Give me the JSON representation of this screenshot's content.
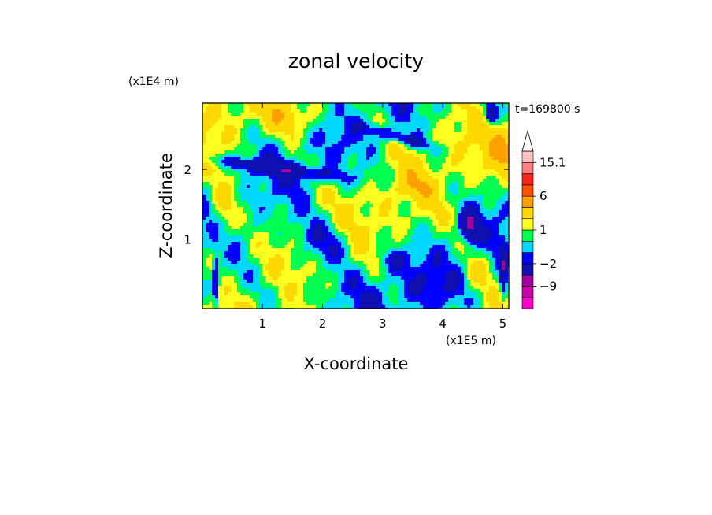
{
  "chart_data": {
    "type": "heatmap",
    "title": "zonal velocity",
    "xlabel": "X-coordinate",
    "ylabel": "Z-coordinate",
    "x_unit": "(x1E5 m)",
    "y_unit": "(x1E4 m)",
    "time_label": "t=169800 s",
    "xlim": [
      0,
      5.1
    ],
    "ylim": [
      0,
      2.95
    ],
    "x_ticks": [
      1,
      2,
      3,
      4,
      5
    ],
    "x_tick_labels": [
      "1",
      "2",
      "3",
      "4",
      "5"
    ],
    "y_ticks": [
      1,
      2
    ],
    "y_tick_labels": [
      "1",
      "2"
    ],
    "colorbar": {
      "levels": [
        -15.1,
        -12,
        -9,
        -6,
        -2,
        -1,
        0,
        1,
        2,
        4,
        6,
        9,
        12,
        15.1
      ],
      "colors": [
        "#ff00c8",
        "#cc00a8",
        "#a000a0",
        "#1010b0",
        "#0000ff",
        "#00d8ff",
        "#00ff50",
        "#ffff20",
        "#ffd800",
        "#ffa000",
        "#ff5000",
        "#ff2020",
        "#ff8080",
        "#ffc0c0"
      ],
      "tick_values": [
        15.1,
        6,
        1,
        -2,
        -9
      ],
      "tick_labels": [
        "15.1",
        "6",
        "1",
        "−2",
        "−9"
      ],
      "extend": "max"
    }
  }
}
